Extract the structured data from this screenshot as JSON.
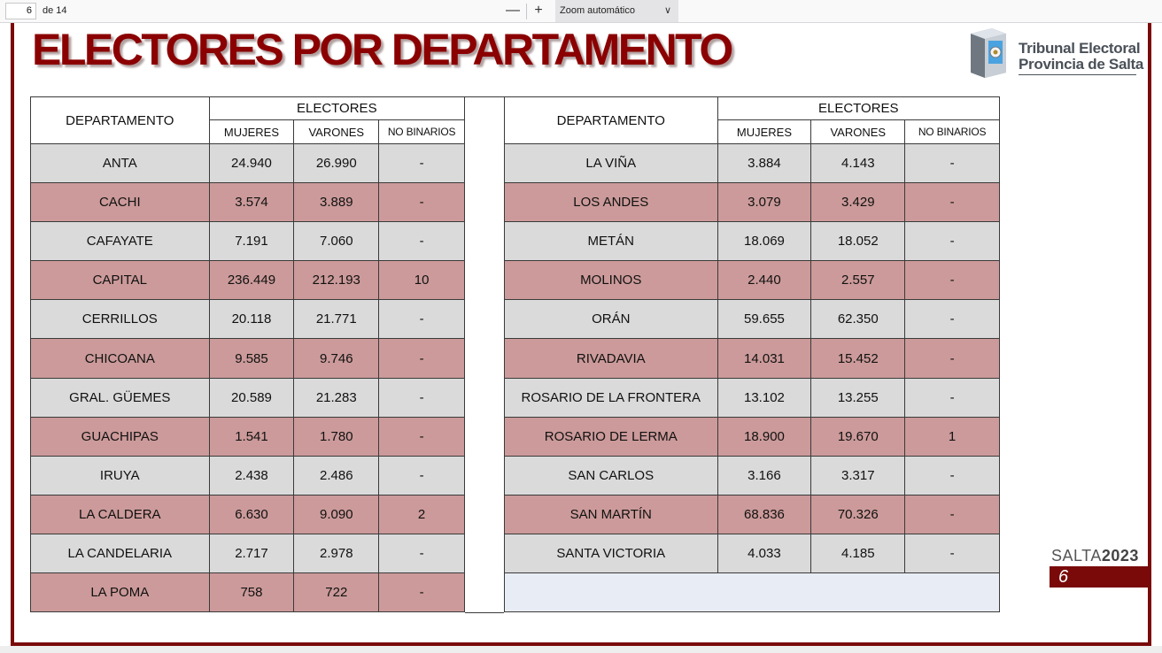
{
  "viewer": {
    "page_number": "6",
    "page_total": "de 14",
    "zoom_label": "Zoom automático",
    "zoom_out": "—",
    "zoom_in": "+"
  },
  "document": {
    "title": "ELECTORES POR DEPARTAMENTO",
    "logo_line1": "Tribunal Electoral",
    "logo_line2": "Provincia de Salta",
    "footer_brand": "SALTA",
    "footer_year": "2023",
    "page_badge": "6"
  },
  "headers": {
    "departamento": "DEPARTAMENTO",
    "electores": "ELECTORES",
    "mujeres": "MUJERES",
    "varones": "VARONES",
    "no_binarios": "NO BINARIOS"
  },
  "left_rows": [
    {
      "dep": "ANTA",
      "m": "24.940",
      "v": "26.990",
      "nb": "-"
    },
    {
      "dep": "CACHI",
      "m": "3.574",
      "v": "3.889",
      "nb": "-"
    },
    {
      "dep": "CAFAYATE",
      "m": "7.191",
      "v": "7.060",
      "nb": "-"
    },
    {
      "dep": "CAPITAL",
      "m": "236.449",
      "v": "212.193",
      "nb": "10"
    },
    {
      "dep": "CERRILLOS",
      "m": "20.118",
      "v": "21.771",
      "nb": "-"
    },
    {
      "dep": "CHICOANA",
      "m": "9.585",
      "v": "9.746",
      "nb": "-"
    },
    {
      "dep": "GRAL. GÜEMES",
      "m": "20.589",
      "v": "21.283",
      "nb": "-"
    },
    {
      "dep": "GUACHIPAS",
      "m": "1.541",
      "v": "1.780",
      "nb": "-"
    },
    {
      "dep": "IRUYA",
      "m": "2.438",
      "v": "2.486",
      "nb": "-"
    },
    {
      "dep": "LA CALDERA",
      "m": "6.630",
      "v": "9.090",
      "nb": "2"
    },
    {
      "dep": "LA CANDELARIA",
      "m": "2.717",
      "v": "2.978",
      "nb": "-"
    },
    {
      "dep": "LA POMA",
      "m": "758",
      "v": "722",
      "nb": "-"
    }
  ],
  "right_rows": [
    {
      "dep": "LA VIÑA",
      "m": "3.884",
      "v": "4.143",
      "nb": "-"
    },
    {
      "dep": "LOS ANDES",
      "m": "3.079",
      "v": "3.429",
      "nb": "-"
    },
    {
      "dep": "METÁN",
      "m": "18.069",
      "v": "18.052",
      "nb": "-"
    },
    {
      "dep": "MOLINOS",
      "m": "2.440",
      "v": "2.557",
      "nb": "-"
    },
    {
      "dep": "ORÁN",
      "m": "59.655",
      "v": "62.350",
      "nb": "-"
    },
    {
      "dep": "RIVADAVIA",
      "m": "14.031",
      "v": "15.452",
      "nb": "-"
    },
    {
      "dep": "ROSARIO DE LA FRONTERA",
      "m": "13.102",
      "v": "13.255",
      "nb": "-"
    },
    {
      "dep": "ROSARIO DE LERMA",
      "m": "18.900",
      "v": "19.670",
      "nb": "1"
    },
    {
      "dep": "SAN CARLOS",
      "m": "3.166",
      "v": "3.317",
      "nb": "-"
    },
    {
      "dep": "SAN MARTÍN",
      "m": "68.836",
      "v": "70.326",
      "nb": "-"
    },
    {
      "dep": "SANTA VICTORIA",
      "m": "4.033",
      "v": "4.185",
      "nb": "-"
    }
  ],
  "colors": {
    "brand_red": "#7a0a0a",
    "title_red": "#8b0000",
    "row_grey": "#dadada",
    "row_rose": "#cc9a9a",
    "empty_cell": "#e8ecf4"
  }
}
